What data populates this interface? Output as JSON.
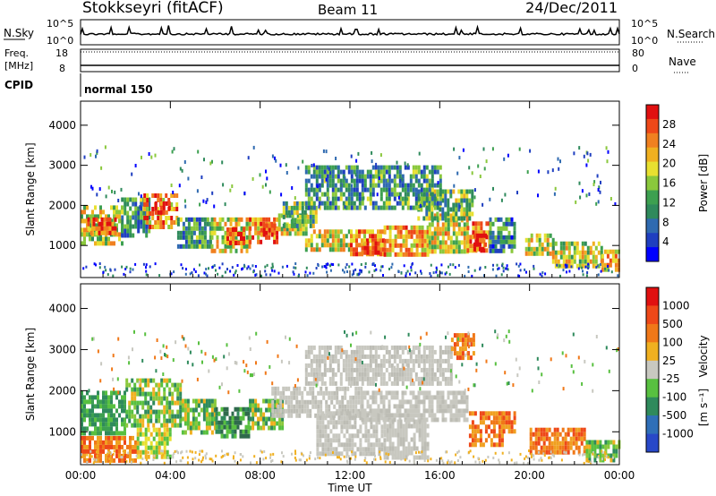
{
  "header": {
    "station": "Stokkseyri (fitACF)",
    "beam": "Beam 11",
    "date": "24/Dec/2011"
  },
  "top_panels": {
    "nsky_label": "N.Sky",
    "nsky_ticks": [
      "10^5",
      "10^0"
    ],
    "nsearch_label": "N.Search",
    "nsearch_ticks": [
      "10^5",
      "10^0"
    ],
    "freq_label": "Freq.",
    "freq_unit": "[MHz]",
    "freq_ticks": [
      "18",
      "8"
    ],
    "nave_label": "Nave",
    "nave_ticks": [
      "80",
      "0"
    ],
    "cpid_label": "CPID",
    "cpid_value": "normal 150"
  },
  "chart_data": [
    {
      "type": "heatmap",
      "panel": "power",
      "ylabel": "Slant Range [km]",
      "y_ticks": [
        "4000",
        "3000",
        "2000",
        "1000"
      ],
      "ylim": [
        200,
        4600
      ],
      "x_ticks": [
        "00:00",
        "04:00",
        "08:00",
        "12:00",
        "16:00",
        "20:00",
        "00:00"
      ],
      "xlim_hours": [
        0,
        24
      ],
      "colorbar_label": "Power [dB]",
      "colorbar_ticks": [
        "28",
        "24",
        "20",
        "16",
        "12",
        "8",
        "4"
      ],
      "colorbar_colors": [
        "#0000ff",
        "#1f3fc0",
        "#2f6ab0",
        "#2f8a5c",
        "#3da050",
        "#8ac83c",
        "#e8e030",
        "#f0b020",
        "#f08020",
        "#ee4818",
        "#e01010"
      ],
      "regions": [
        {
          "t0": 0.0,
          "t1": 1.8,
          "r0": 1100,
          "r1": 2000,
          "level": 0.55
        },
        {
          "t0": 0.3,
          "t1": 1.5,
          "r0": 1300,
          "r1": 1700,
          "level": 0.85
        },
        {
          "t0": 1.8,
          "t1": 3.0,
          "r0": 1300,
          "r1": 2200,
          "level": 0.35
        },
        {
          "t0": 2.8,
          "t1": 4.3,
          "r0": 1500,
          "r1": 2300,
          "level": 0.75
        },
        {
          "t0": 3.3,
          "t1": 4.0,
          "r0": 1800,
          "r1": 2100,
          "level": 0.9
        },
        {
          "t0": 4.3,
          "t1": 5.8,
          "r0": 1000,
          "r1": 1700,
          "level": 0.35
        },
        {
          "t0": 5.8,
          "t1": 7.5,
          "r0": 900,
          "r1": 1700,
          "level": 0.6
        },
        {
          "t0": 6.5,
          "t1": 7.3,
          "r0": 1050,
          "r1": 1450,
          "level": 0.85
        },
        {
          "t0": 7.5,
          "t1": 8.8,
          "r0": 1100,
          "r1": 1700,
          "level": 0.75
        },
        {
          "t0": 8.0,
          "t1": 8.6,
          "r0": 1250,
          "r1": 1550,
          "level": 0.9
        },
        {
          "t0": 8.8,
          "t1": 10.0,
          "r0": 1300,
          "r1": 1800,
          "level": 0.55
        },
        {
          "t0": 9.0,
          "t1": 10.5,
          "r0": 1500,
          "r1": 2100,
          "level": 0.45
        },
        {
          "t0": 10.0,
          "t1": 12.0,
          "r0": 900,
          "r1": 1400,
          "level": 0.6
        },
        {
          "t0": 12.0,
          "t1": 13.5,
          "r0": 800,
          "r1": 1400,
          "level": 0.75
        },
        {
          "t0": 12.5,
          "t1": 13.3,
          "r0": 850,
          "r1": 1100,
          "level": 0.9
        },
        {
          "t0": 13.5,
          "t1": 15.5,
          "r0": 800,
          "r1": 1500,
          "level": 0.7
        },
        {
          "t0": 15.5,
          "t1": 17.2,
          "r0": 900,
          "r1": 1800,
          "level": 0.6
        },
        {
          "t0": 15.0,
          "t1": 17.5,
          "r0": 1700,
          "r1": 2400,
          "level": 0.45
        },
        {
          "t0": 17.2,
          "t1": 18.2,
          "r0": 900,
          "r1": 1600,
          "level": 0.8
        },
        {
          "t0": 17.5,
          "t1": 18.0,
          "r0": 950,
          "r1": 1300,
          "level": 0.95
        },
        {
          "t0": 18.2,
          "t1": 19.3,
          "r0": 900,
          "r1": 1700,
          "level": 0.3
        },
        {
          "t0": 10.0,
          "t1": 16.0,
          "r0": 1900,
          "r1": 3000,
          "level": 0.35
        },
        {
          "t0": 19.8,
          "t1": 21.0,
          "r0": 750,
          "r1": 1300,
          "level": 0.6
        },
        {
          "t0": 21.0,
          "t1": 23.2,
          "r0": 500,
          "r1": 1100,
          "level": 0.55
        },
        {
          "t0": 23.2,
          "t1": 24.0,
          "r0": 400,
          "r1": 900,
          "level": 0.7
        }
      ]
    },
    {
      "type": "heatmap",
      "panel": "velocity",
      "ylabel": "Slant Range [km]",
      "y_ticks": [
        "4000",
        "3000",
        "2000",
        "1000"
      ],
      "ylim": [
        200,
        4600
      ],
      "x_ticks": [
        "00:00",
        "04:00",
        "08:00",
        "12:00",
        "16:00",
        "20:00",
        "00:00"
      ],
      "xlim_hours": [
        0,
        24
      ],
      "xlabel": "Time UT",
      "colorbar_label": "Velocity",
      "colorbar_unit": "[m s⁻¹]",
      "colorbar_ticks": [
        "1000",
        "500",
        "100",
        "25",
        "-25",
        "-100",
        "-500",
        "-1000"
      ],
      "colorbar_colors": [
        "#2848c8",
        "#2f6fb8",
        "#2f8a5c",
        "#58c040",
        "#c8c8c0",
        "#f0b020",
        "#f07818",
        "#ee4818",
        "#e01010"
      ],
      "regions": [
        {
          "t0": 0.0,
          "t1": 2.0,
          "r0": 1000,
          "r1": 2000,
          "vel": "green"
        },
        {
          "t0": 0.0,
          "t1": 2.5,
          "r0": 300,
          "r1": 900,
          "vel": "orange"
        },
        {
          "t0": 2.0,
          "t1": 4.5,
          "r0": 1200,
          "r1": 2300,
          "vel": "lightgreen"
        },
        {
          "t0": 2.5,
          "t1": 4.0,
          "r0": 400,
          "r1": 1100,
          "vel": "yellow"
        },
        {
          "t0": 4.5,
          "t1": 6.0,
          "r0": 1000,
          "r1": 1800,
          "vel": "lightgreen"
        },
        {
          "t0": 6.0,
          "t1": 7.5,
          "r0": 900,
          "r1": 1600,
          "vel": "darkgreen"
        },
        {
          "t0": 7.5,
          "t1": 9.0,
          "r0": 1100,
          "r1": 1800,
          "vel": "lightgreen"
        },
        {
          "t0": 8.5,
          "t1": 12.5,
          "r0": 1400,
          "r1": 2100,
          "vel": "gray"
        },
        {
          "t0": 10.5,
          "t1": 13.5,
          "r0": 500,
          "r1": 1500,
          "vel": "gray"
        },
        {
          "t0": 12.5,
          "t1": 17.2,
          "r0": 1300,
          "r1": 2000,
          "vel": "gray"
        },
        {
          "t0": 10.0,
          "t1": 16.5,
          "r0": 2200,
          "r1": 3100,
          "vel": "gray"
        },
        {
          "t0": 13.5,
          "t1": 15.5,
          "r0": 400,
          "r1": 1300,
          "vel": "gray"
        },
        {
          "t0": 17.3,
          "t1": 18.8,
          "r0": 700,
          "r1": 1500,
          "vel": "orange"
        },
        {
          "t0": 18.8,
          "t1": 19.3,
          "r0": 1000,
          "r1": 1500,
          "vel": "orange"
        },
        {
          "t0": 20.0,
          "t1": 22.5,
          "r0": 500,
          "r1": 1100,
          "vel": "orange"
        },
        {
          "t0": 22.5,
          "t1": 24.0,
          "r0": 350,
          "r1": 800,
          "vel": "lightgreen"
        },
        {
          "t0": 16.5,
          "t1": 17.5,
          "r0": 2800,
          "r1": 3400,
          "vel": "orange"
        }
      ]
    }
  ]
}
